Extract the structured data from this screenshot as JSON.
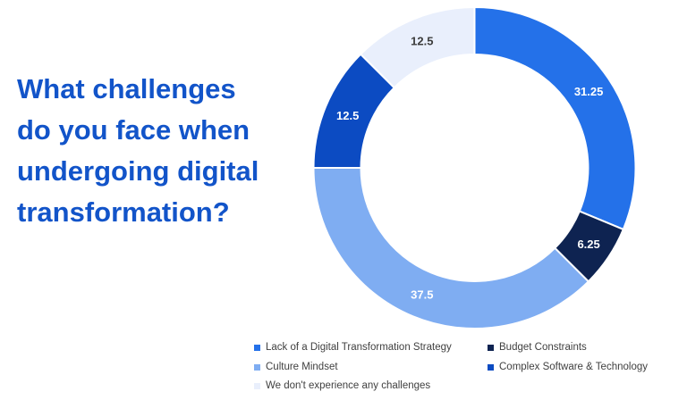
{
  "page": {
    "background": "#ffffff"
  },
  "title": {
    "text": "What challenges do you face when undergoing digital transformation?",
    "lines": [
      "What challenges",
      "do you face when",
      "undergoing digital",
      "transformation?"
    ],
    "color": "#1254c9"
  },
  "chart_data": {
    "type": "pie",
    "variant": "donut",
    "unit": "percent",
    "total": 100,
    "start_angle_deg": 0,
    "direction": "clockwise",
    "grid": false,
    "legend_position": "bottom",
    "legend_text_color": "#404040",
    "segments": [
      {
        "label": "Lack of a Digital Transformation Strategy",
        "value": 31.25,
        "display_value": "31.25",
        "color": "#2471e9",
        "value_label_color": "#ffffff"
      },
      {
        "label": "Budget Constraints",
        "value": 6.25,
        "display_value": "6.25",
        "color": "#0e2351",
        "value_label_color": "#ffffff"
      },
      {
        "label": "Culture Mindset",
        "value": 37.5,
        "display_value": "37.5",
        "color": "#7fadf2",
        "value_label_color": "#ffffff"
      },
      {
        "label": "Complex Software & Technology",
        "value": 12.5,
        "display_value": "12.5",
        "color": "#0c4bc2",
        "value_label_color": "#ffffff"
      },
      {
        "label": "We don't experience any challenges",
        "value": 12.5,
        "display_value": "12.5",
        "color": "#e9effc",
        "value_label_color": "#3c3c3c"
      }
    ]
  }
}
